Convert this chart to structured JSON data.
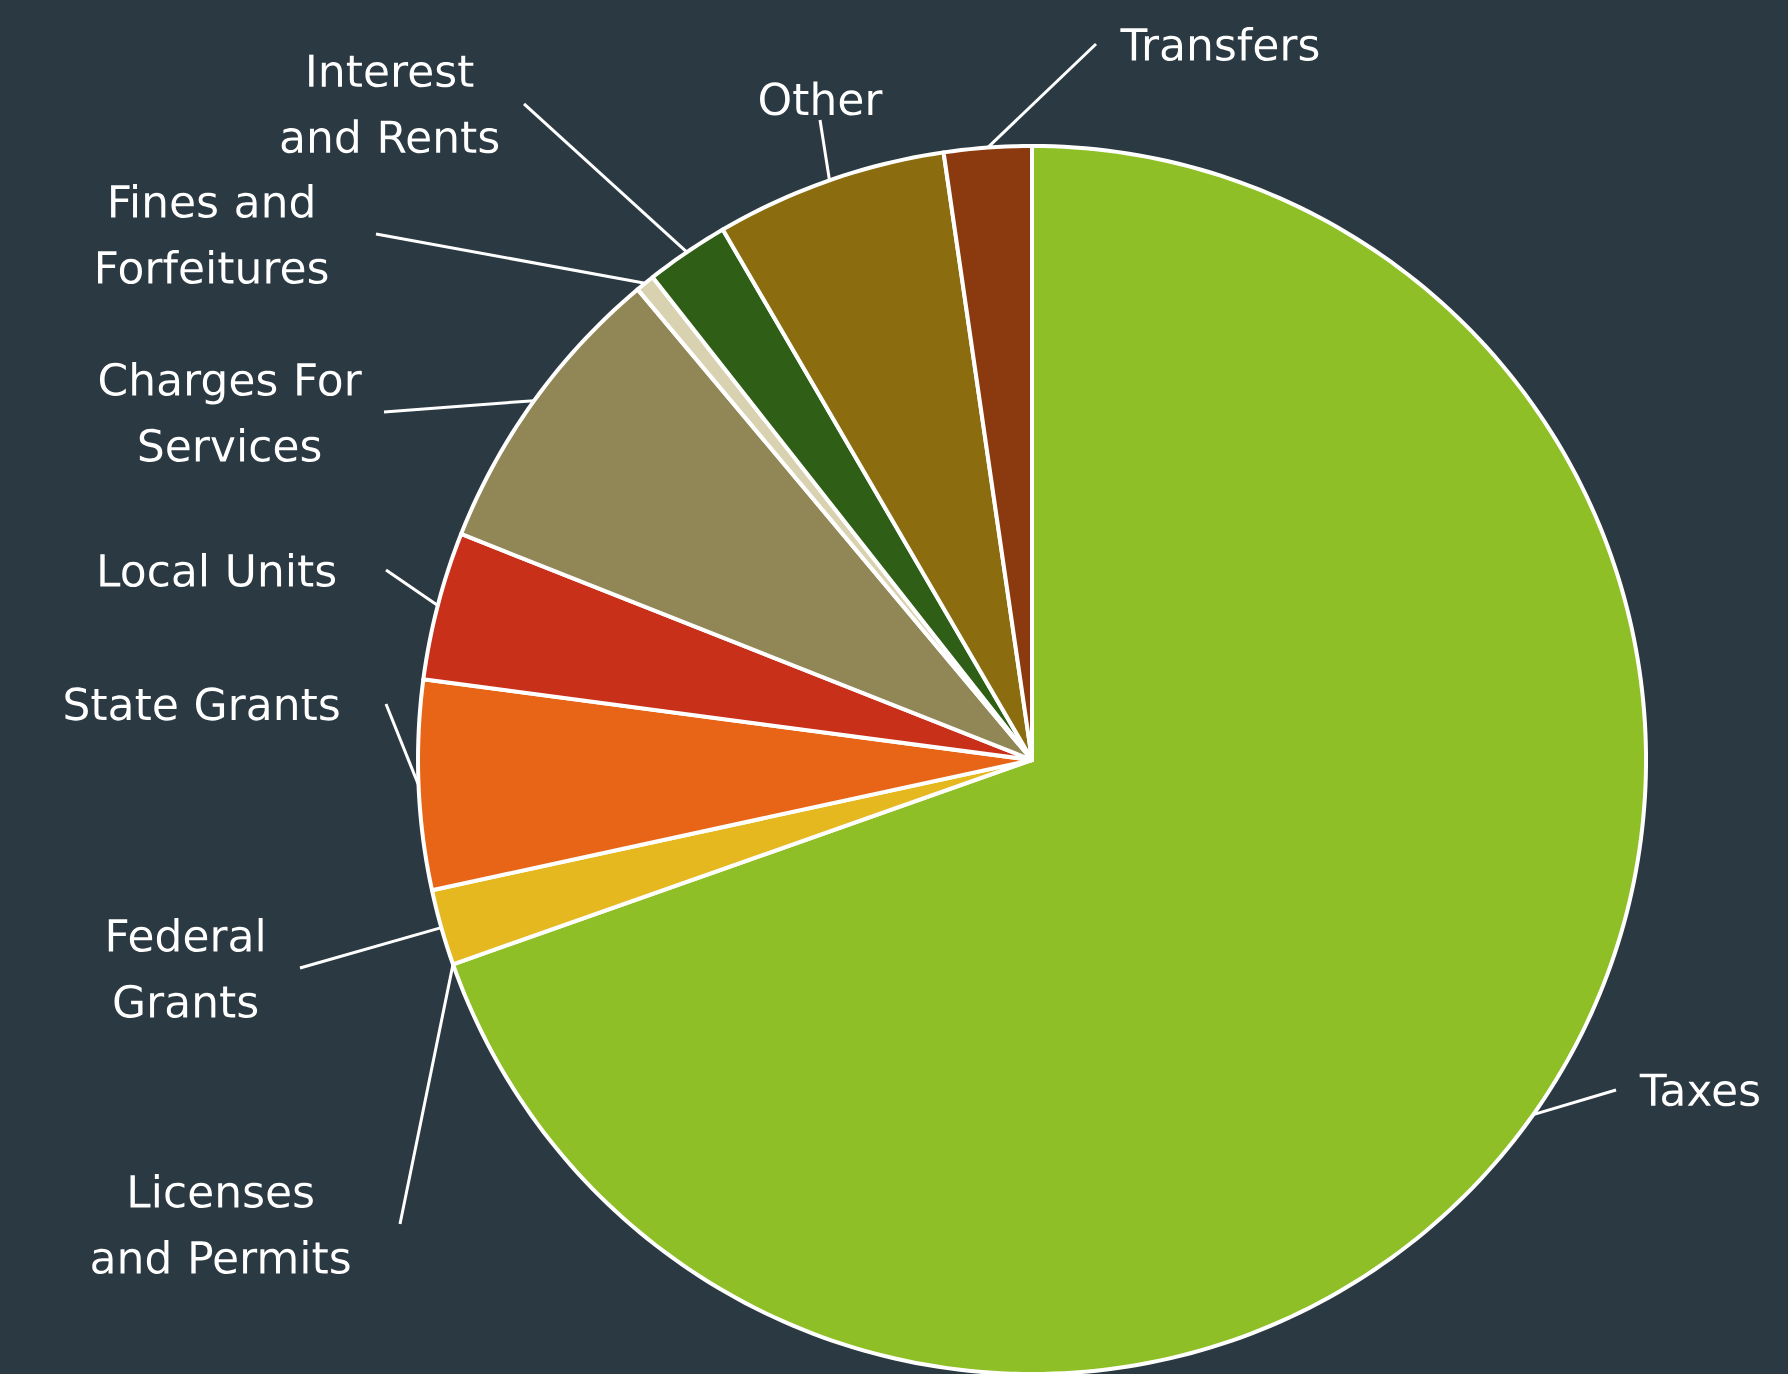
{
  "chart_data": {
    "type": "pie",
    "categories": [
      "Taxes",
      "Licenses and Permits",
      "Federal Grants",
      "State Grants",
      "Local Units",
      "Charges For Services",
      "Fines and Forfeitures",
      "Interest and Rents",
      "Other",
      "Transfers"
    ],
    "values": [
      69.6,
      null,
      2.0,
      5.5,
      3.9,
      7.9,
      0.5,
      2.2,
      6.1,
      2.3
    ],
    "colors": [
      "#8fbf26",
      "#e6dfc0",
      "#e6b820",
      "#e86518",
      "#c8301a",
      "#918756",
      "#d8d2b0",
      "#2f5e16",
      "#8b6d10",
      "#8b3a0f"
    ]
  }
}
